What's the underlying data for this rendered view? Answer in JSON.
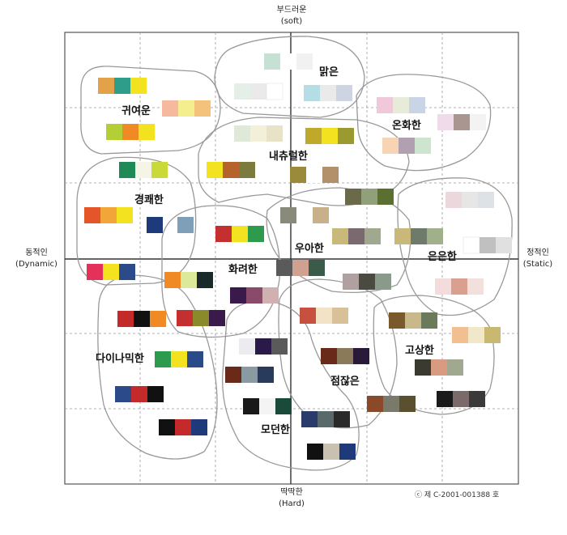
{
  "axes": {
    "top_label": "부드러운",
    "top_sub": "(soft)",
    "bottom_label": "딱딱한",
    "bottom_sub": "(Hard)",
    "left_label": "동적인",
    "left_sub": "(Dynamic)",
    "right_label": "정적인",
    "right_sub": "(Static)"
  },
  "copyright": "ⓒ 제 C-2001-001388 호",
  "clusters": [
    {
      "label": "귀여운"
    },
    {
      "label": "맑은"
    },
    {
      "label": "온화한"
    },
    {
      "label": "내츄럴한"
    },
    {
      "label": "경쾌한"
    },
    {
      "label": "우아한"
    },
    {
      "label": "은은한"
    },
    {
      "label": "화려한"
    },
    {
      "label": "다이나믹한"
    },
    {
      "label": "점잖은"
    },
    {
      "label": "고상한"
    },
    {
      "label": "모던한"
    }
  ],
  "swatch_colors": {
    "yellow": "#f2e21f",
    "red": "#d42a2a",
    "navy": "#1f3a7a",
    "black": "#111111"
  }
}
